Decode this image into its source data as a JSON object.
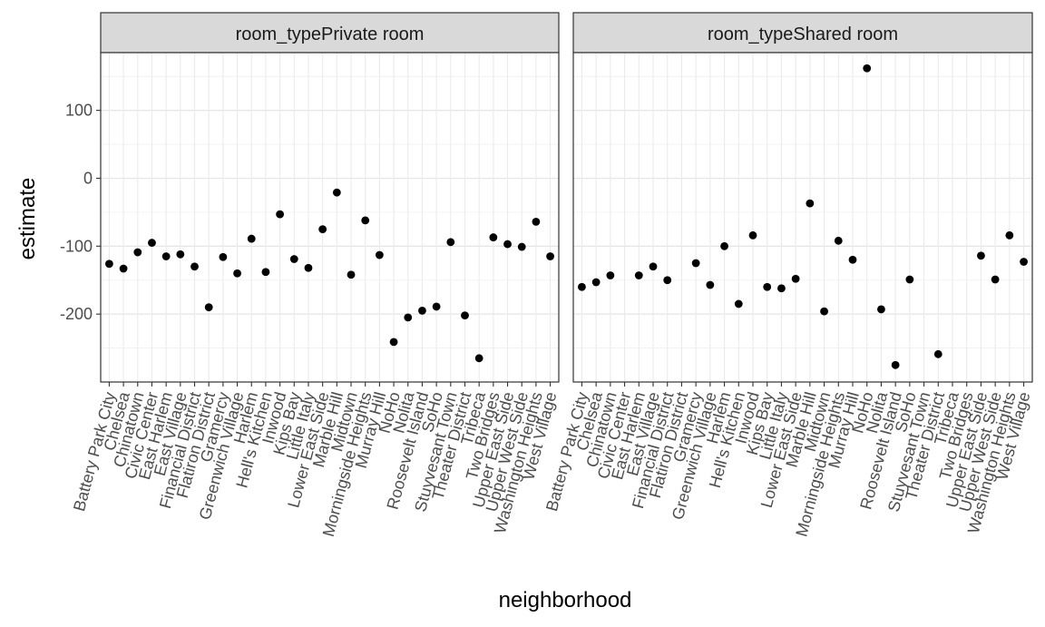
{
  "chart_data": {
    "type": "scatter",
    "xlabel": "neighborhood",
    "ylabel": "estimate",
    "ylim": [
      -300,
      185
    ],
    "y_ticks": [
      100,
      0,
      -100,
      -200
    ],
    "y_tick_labels": [
      "100",
      "0",
      "-100",
      "-200"
    ],
    "grid": true,
    "point_color": "#000000",
    "panels": [
      {
        "strip": "room_typePrivate room",
        "categories": [
          "Battery Park City",
          "Chelsea",
          "Chinatown",
          "Civic Center",
          "East Harlem",
          "East Village",
          "Financial District",
          "Flatiron District",
          "Gramercy",
          "Greenwich Village",
          "Harlem",
          "Hell's Kitchen",
          "Inwood",
          "Kips Bay",
          "Little Italy",
          "Lower East Side",
          "Marble Hill",
          "Midtown",
          "Morningside Heights",
          "Murray Hill",
          "NoHo",
          "Nolita",
          "Roosevelt Island",
          "SoHo",
          "Stuyvesant Town",
          "Theater District",
          "Tribeca",
          "Two Bridges",
          "Upper East Side",
          "Upper West Side",
          "Washington Heights",
          "West Village"
        ],
        "values": [
          -126,
          -133,
          -109,
          -95,
          -115,
          -112,
          -130,
          -190,
          -116,
          -140,
          -89,
          -138,
          -53,
          -119,
          -132,
          -75,
          -21,
          -142,
          -62,
          -113,
          -241,
          -205,
          -195,
          -189,
          -94,
          -202,
          -265,
          -87,
          -97,
          -101,
          -64,
          -115
        ]
      },
      {
        "strip": "room_typeShared room",
        "categories": [
          "Battery Park City",
          "Chelsea",
          "Chinatown",
          "Civic Center",
          "East Harlem",
          "East Village",
          "Financial District",
          "Flatiron District",
          "Gramercy",
          "Greenwich Village",
          "Harlem",
          "Hell's Kitchen",
          "Inwood",
          "Kips Bay",
          "Little Italy",
          "Lower East Side",
          "Marble Hill",
          "Midtown",
          "Morningside Heights",
          "Murray Hill",
          "NoHo",
          "Nolita",
          "Roosevelt Island",
          "SoHo",
          "Stuyvesant Town",
          "Theater District",
          "Tribeca",
          "Two Bridges",
          "Upper East Side",
          "Upper West Side",
          "Washington Heights",
          "West Village"
        ],
        "values": [
          -160,
          -153,
          -143,
          null,
          -143,
          -130,
          -150,
          null,
          -125,
          -157,
          -100,
          -185,
          -84,
          -160,
          -162,
          -148,
          -37,
          -196,
          -92,
          -120,
          162,
          -193,
          -275,
          -149,
          null,
          -259,
          null,
          null,
          -114,
          -149,
          -84,
          -123
        ]
      }
    ]
  }
}
